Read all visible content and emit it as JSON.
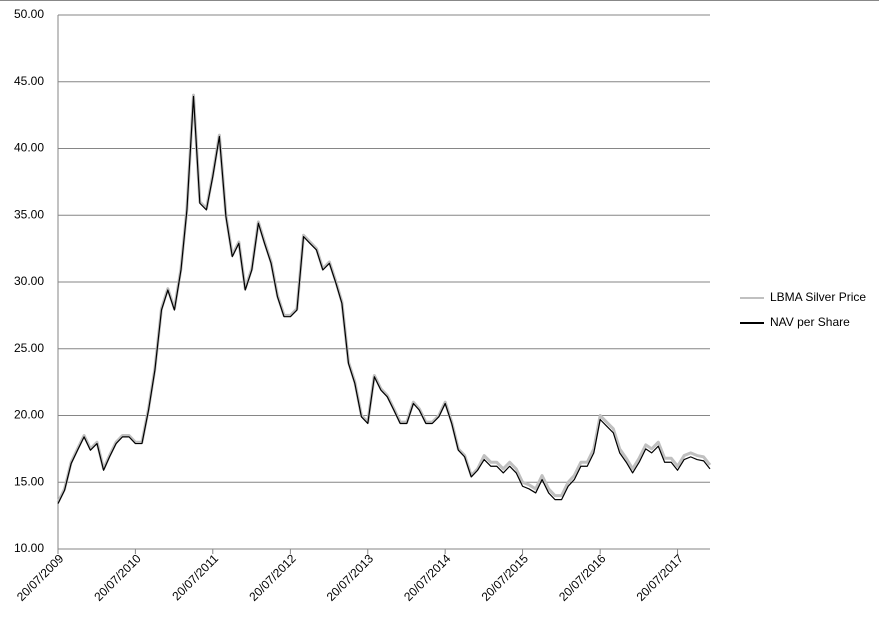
{
  "chart_data": {
    "type": "line",
    "x": [
      "20/07/2009",
      "20/08/2009",
      "20/09/2009",
      "20/10/2009",
      "20/11/2009",
      "20/12/2009",
      "20/01/2010",
      "20/02/2010",
      "20/03/2010",
      "20/04/2010",
      "20/05/2010",
      "20/06/2010",
      "20/07/2010",
      "20/08/2010",
      "20/09/2010",
      "20/10/2010",
      "20/11/2010",
      "20/12/2010",
      "20/01/2011",
      "20/02/2011",
      "20/03/2011",
      "20/04/2011",
      "20/05/2011",
      "20/06/2011",
      "20/07/2011",
      "20/08/2011",
      "20/09/2011",
      "20/10/2011",
      "20/11/2011",
      "20/12/2011",
      "20/01/2012",
      "20/02/2012",
      "20/03/2012",
      "20/04/2012",
      "20/05/2012",
      "20/06/2012",
      "20/07/2012",
      "20/08/2012",
      "20/09/2012",
      "20/10/2012",
      "20/11/2012",
      "20/12/2012",
      "20/01/2013",
      "20/02/2013",
      "20/03/2013",
      "20/04/2013",
      "20/05/2013",
      "20/06/2013",
      "20/07/2013",
      "20/08/2013",
      "20/09/2013",
      "20/10/2013",
      "20/11/2013",
      "20/12/2013",
      "20/01/2014",
      "20/02/2014",
      "20/03/2014",
      "20/04/2014",
      "20/05/2014",
      "20/06/2014",
      "20/07/2014",
      "20/08/2014",
      "20/09/2014",
      "20/10/2014",
      "20/11/2014",
      "20/12/2014",
      "20/01/2015",
      "20/02/2015",
      "20/03/2015",
      "20/04/2015",
      "20/05/2015",
      "20/06/2015",
      "20/07/2015",
      "20/08/2015",
      "20/09/2015",
      "20/10/2015",
      "20/11/2015",
      "20/12/2015",
      "20/01/2016",
      "20/02/2016",
      "20/03/2016",
      "20/04/2016",
      "20/05/2016",
      "20/06/2016",
      "20/07/2016",
      "20/08/2016",
      "20/09/2016",
      "20/10/2016",
      "20/11/2016",
      "20/12/2016",
      "20/01/2017",
      "20/02/2017",
      "20/03/2017",
      "20/04/2017",
      "20/05/2017",
      "20/06/2017",
      "20/07/2017",
      "20/08/2017",
      "20/09/2017",
      "20/10/2017",
      "20/11/2017",
      "20/12/2017"
    ],
    "series": [
      {
        "name": "LBMA Silver Price",
        "color": "#c0c0c0",
        "values": [
          13.5,
          14.5,
          16.5,
          17.5,
          18.5,
          17.5,
          18,
          16,
          17,
          18,
          18.5,
          18.5,
          18,
          18,
          20.5,
          23.5,
          28,
          29.5,
          28,
          31,
          35.5,
          44,
          36,
          35.5,
          38,
          41,
          35,
          32,
          33,
          29.5,
          31,
          34.5,
          33,
          31.5,
          29,
          27.5,
          27.5,
          28,
          33.5,
          33,
          32.5,
          31,
          31.5,
          30,
          28.5,
          24,
          22.5,
          20,
          19.5,
          23,
          22,
          21.5,
          20.5,
          19.5,
          19.5,
          21,
          20.5,
          19.5,
          19.5,
          20,
          21,
          19.5,
          17.5,
          17,
          15.5,
          16,
          17,
          16.5,
          16.5,
          16,
          16.5,
          16,
          15,
          14.8,
          14.5,
          15.5,
          14.5,
          14,
          14,
          15,
          15.5,
          16.5,
          16.5,
          17.5,
          20,
          19.5,
          19,
          17.5,
          16.8,
          16,
          16.8,
          17.8,
          17.5,
          18,
          16.8,
          16.8,
          16.2,
          17,
          17.2,
          17,
          16.9,
          16.3
        ]
      },
      {
        "name": "NAV per Share",
        "color": "#000000",
        "values": [
          13.4,
          14.4,
          16.4,
          17.4,
          18.4,
          17.4,
          17.9,
          15.9,
          16.9,
          17.9,
          18.4,
          18.4,
          17.9,
          17.9,
          20.4,
          23.4,
          27.9,
          29.4,
          27.9,
          30.9,
          35.4,
          43.9,
          35.9,
          35.4,
          37.9,
          40.9,
          34.9,
          31.9,
          32.9,
          29.4,
          30.9,
          34.4,
          32.9,
          31.4,
          28.9,
          27.4,
          27.4,
          27.9,
          33.4,
          32.9,
          32.4,
          30.9,
          31.4,
          29.9,
          28.4,
          23.9,
          22.4,
          19.9,
          19.4,
          22.9,
          21.9,
          21.4,
          20.4,
          19.4,
          19.4,
          20.9,
          20.4,
          19.4,
          19.4,
          19.9,
          20.9,
          19.4,
          17.4,
          16.9,
          15.4,
          15.9,
          16.7,
          16.2,
          16.2,
          15.7,
          16.2,
          15.7,
          14.7,
          14.5,
          14.2,
          15.2,
          14.2,
          13.7,
          13.7,
          14.7,
          15.2,
          16.2,
          16.2,
          17.2,
          19.7,
          19.2,
          18.7,
          17.2,
          16.5,
          15.7,
          16.5,
          17.5,
          17.2,
          17.7,
          16.5,
          16.5,
          15.9,
          16.7,
          16.9,
          16.7,
          16.6,
          16.0
        ]
      }
    ],
    "xlim": [
      "20/07/2009",
      "20/12/2017"
    ],
    "xticks": [
      "20/07/2009",
      "20/07/2010",
      "20/07/2011",
      "20/07/2012",
      "20/07/2013",
      "20/07/2014",
      "20/07/2015",
      "20/07/2016",
      "20/07/2017"
    ],
    "ylim": [
      10,
      50
    ],
    "yticks": [
      {
        "value": 10,
        "label": "10.00"
      },
      {
        "value": 15,
        "label": "15.00"
      },
      {
        "value": 20,
        "label": "20.00"
      },
      {
        "value": 25,
        "label": "25.00"
      },
      {
        "value": 30,
        "label": "30.00"
      },
      {
        "value": 35,
        "label": "35.00"
      },
      {
        "value": 40,
        "label": "40.00"
      },
      {
        "value": 45,
        "label": "45.00"
      },
      {
        "value": 50,
        "label": "50.00"
      }
    ],
    "grid": true,
    "legend": "right"
  }
}
